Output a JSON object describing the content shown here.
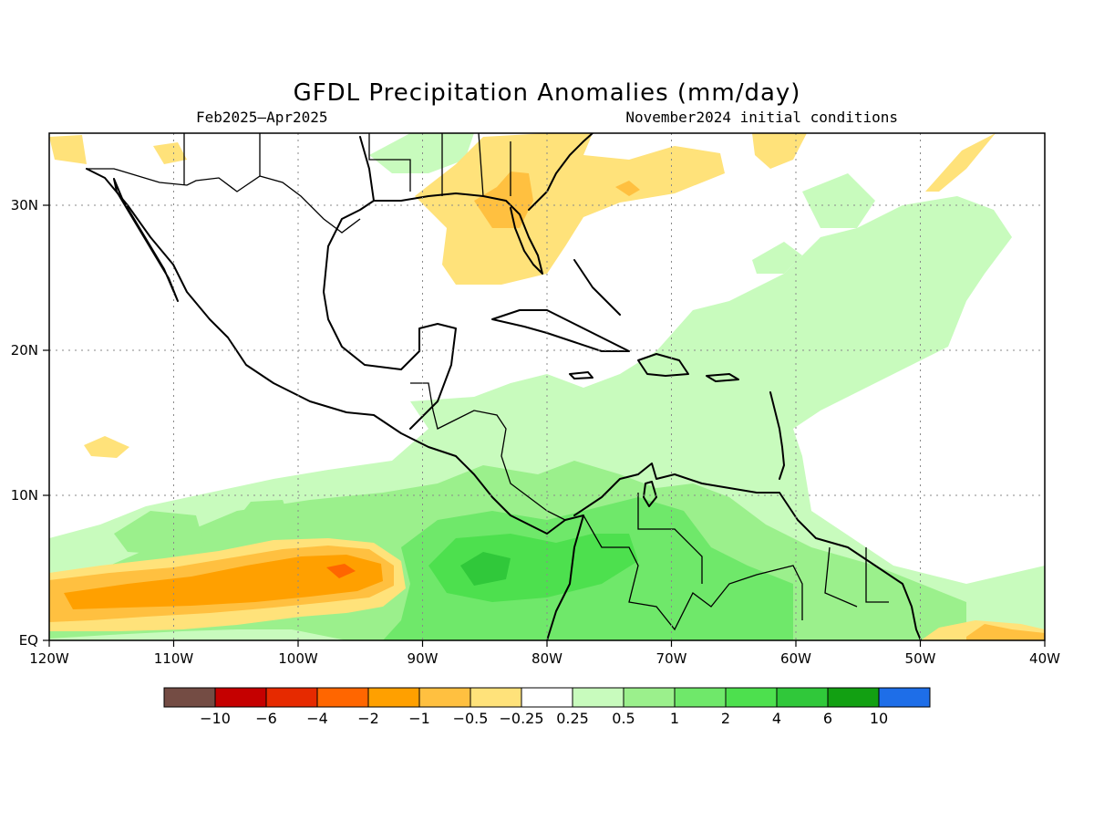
{
  "title": "GFDL Precipitation Anomalies (mm/day)",
  "subtitle_left": "Feb2025–Apr2025",
  "subtitle_right": "November2024 initial conditions",
  "colors": {
    "neg10": "#744c44",
    "neg6": "#c50000",
    "neg4": "#e62a00",
    "neg2": "#ff6600",
    "neg1": "#ffa000",
    "neg05": "#ffc040",
    "neg025": "#ffe27a",
    "neutral": "#ffffff",
    "pos025": "#c8fbbd",
    "pos05": "#9bf08c",
    "pos1": "#6fe86a",
    "pos2": "#4de04e",
    "pos4": "#30c83a",
    "pos6": "#12a012",
    "pos10": "#1e6ee8"
  },
  "chart_data": {
    "type": "heatmap",
    "variable": "Precipitation anomaly",
    "units": "mm/day",
    "lon_range": [
      -120,
      -40
    ],
    "lat_range": [
      0,
      35
    ],
    "x_ticks": [
      "120W",
      "110W",
      "100W",
      "90W",
      "80W",
      "70W",
      "60W",
      "50W",
      "40W"
    ],
    "y_ticks": [
      "EQ",
      "10N",
      "20N",
      "30N"
    ],
    "colorbar": {
      "labels": [
        "−10",
        "−6",
        "−4",
        "−2",
        "−1",
        "−0.5",
        "−0.25",
        "0.25",
        "0.5",
        "1",
        "2",
        "4",
        "6",
        "10"
      ],
      "colors": [
        "#744c44",
        "#c50000",
        "#e62a00",
        "#ff6600",
        "#ffa000",
        "#ffc040",
        "#ffe27a",
        "#ffffff",
        "#c8fbbd",
        "#9bf08c",
        "#6fe86a",
        "#4de04e",
        "#30c83a",
        "#12a012",
        "#1e6ee8"
      ]
    }
  }
}
